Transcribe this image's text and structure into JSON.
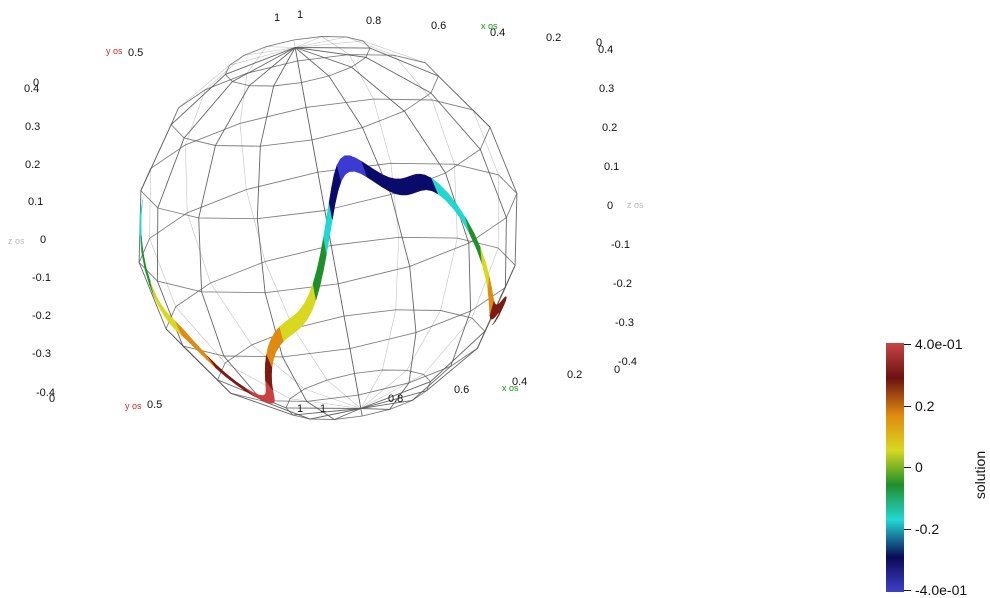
{
  "scene": {
    "sphere_color": "#555555",
    "surface_colormap": [
      "#3b3bd4",
      "#0a0a6b",
      "#1fd8d0",
      "#1f8f2a",
      "#d8d81f",
      "#e08a10",
      "#7a1a10",
      "#c84040"
    ]
  },
  "axes": {
    "x_title": "x os",
    "y_title": "y os",
    "z_title": "z os",
    "colors": {
      "x": "#119a11",
      "y": "#d42a2a",
      "z": "#bbbbbb"
    },
    "top_ticks": [
      "1",
      "1",
      "0.8",
      "0.6",
      "0.4",
      "0.2",
      "0"
    ],
    "bottom_ticks": [
      "1",
      "1",
      "0.8",
      "0.6",
      "0.4",
      "0.2",
      "0"
    ],
    "y_top_tick": "0.5",
    "y_bottom_tick": "0.5",
    "left_z_ticks": [
      "0",
      "0.4",
      "0.3",
      "0.2",
      "0.1",
      "0",
      "-0.1",
      "-0.2",
      "-0.3",
      "-0.4",
      "0"
    ],
    "right_z_ticks": [
      "0.4",
      "0.3",
      "0.2",
      "0.1",
      "0",
      "-0.1",
      "-0.2",
      "-0.3",
      "-0.4"
    ]
  },
  "colorbar": {
    "title": "solution",
    "labels": [
      "4.0e-01",
      "0.2",
      "0",
      "-0.2",
      "-4.0e-01"
    ],
    "range": [
      -0.4,
      0.4
    ],
    "stops": [
      "#c84545",
      "#6b1210",
      "#e08a10",
      "#d8d81f",
      "#1f8f2a",
      "#22d8d4",
      "#0a0a55",
      "#4040c8"
    ]
  }
}
